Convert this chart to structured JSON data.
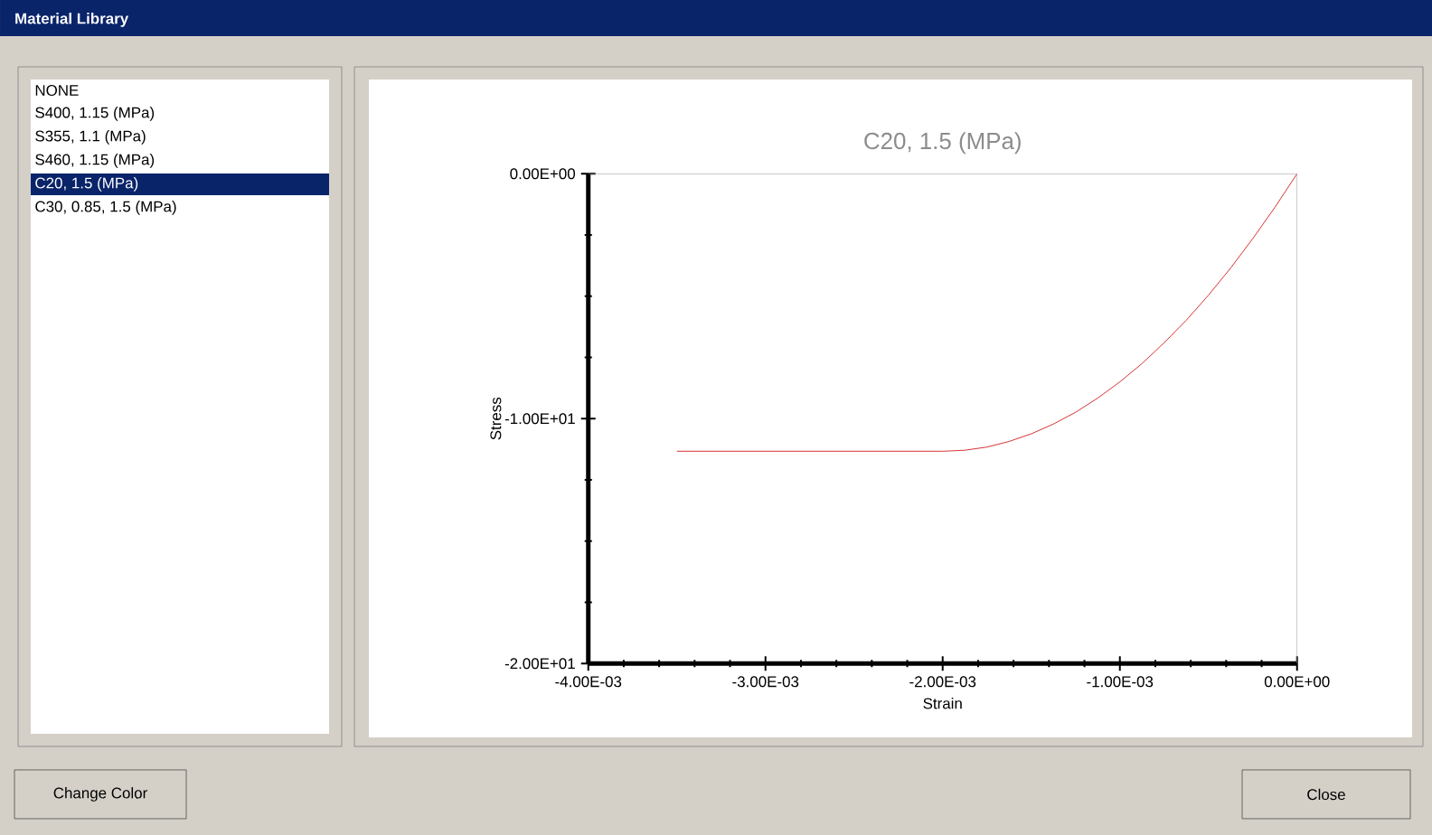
{
  "chart_data": {
    "type": "line",
    "title": "C20, 1.5 (MPa)",
    "xlabel": "Strain",
    "ylabel": "Stress",
    "x": [
      -0.0035,
      -0.003,
      -0.0025,
      -0.002,
      -0.001875,
      -0.00175,
      -0.001625,
      -0.0015,
      -0.001375,
      -0.00125,
      -0.001125,
      -0.001,
      -0.000875,
      -0.00075,
      -0.000625,
      -0.0005,
      -0.000375,
      -0.00025,
      -0.000125,
      0
    ],
    "series": [
      {
        "color": "#cc0000",
        "values": [
          -11.33,
          -11.33,
          -11.33,
          -11.33,
          -11.29,
          -11.16,
          -10.93,
          -10.62,
          -10.22,
          -9.74,
          -9.16,
          -8.5,
          -7.75,
          -6.9,
          -5.98,
          -4.96,
          -3.85,
          -2.65,
          -1.37,
          0
        ]
      }
    ],
    "xlim": [
      -0.004,
      0
    ],
    "ylim": [
      -20,
      0
    ],
    "xticks": [
      {
        "value": -0.004,
        "label": "-4.00E-03"
      },
      {
        "value": -0.003,
        "label": "-3.00E-03"
      },
      {
        "value": -0.002,
        "label": "-2.00E-03"
      },
      {
        "value": -0.001,
        "label": "-1.00E-03"
      },
      {
        "value": 0,
        "label": "0.00E+00"
      }
    ],
    "yticks": [
      {
        "value": -20,
        "label": "-2.00E+01"
      },
      {
        "value": -10,
        "label": "-1.00E+01"
      },
      {
        "value": 0,
        "label": "0.00E+00"
      }
    ],
    "grid": false,
    "marker": "none",
    "line_style": "solid",
    "annotations": [
      "Material Library",
      "NONE",
      "S400, 1.15 (MPa)",
      "S355, 1.1 (MPa)",
      "S460, 1.15 (MPa)",
      "C20, 1.5 (MPa)",
      "C30, 0.85, 1.5 (MPa)",
      "Change Color",
      "Close"
    ]
  }
}
